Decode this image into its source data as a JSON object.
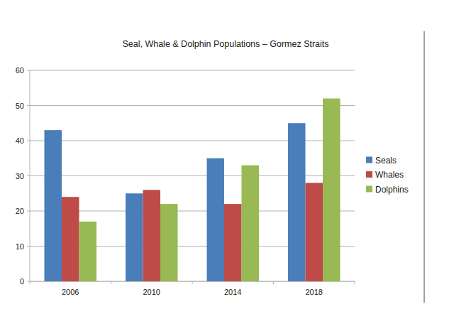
{
  "chart_data": {
    "type": "bar",
    "title": "Seal, Whale & Dolphin Populations – Gormez Straits",
    "categories": [
      "2006",
      "2010",
      "2014",
      "2018"
    ],
    "series": [
      {
        "name": "Seals",
        "color": "#4a7ebb",
        "values": [
          43,
          25,
          35,
          45
        ]
      },
      {
        "name": "Whales",
        "color": "#be4b48",
        "values": [
          24,
          26,
          22,
          28
        ]
      },
      {
        "name": "Dolphins",
        "color": "#98b954",
        "values": [
          17,
          22,
          33,
          52
        ]
      }
    ],
    "ylim": [
      0,
      60
    ],
    "yticks": [
      0,
      10,
      20,
      30,
      40,
      50,
      60
    ],
    "grid": true,
    "legend": "right"
  }
}
